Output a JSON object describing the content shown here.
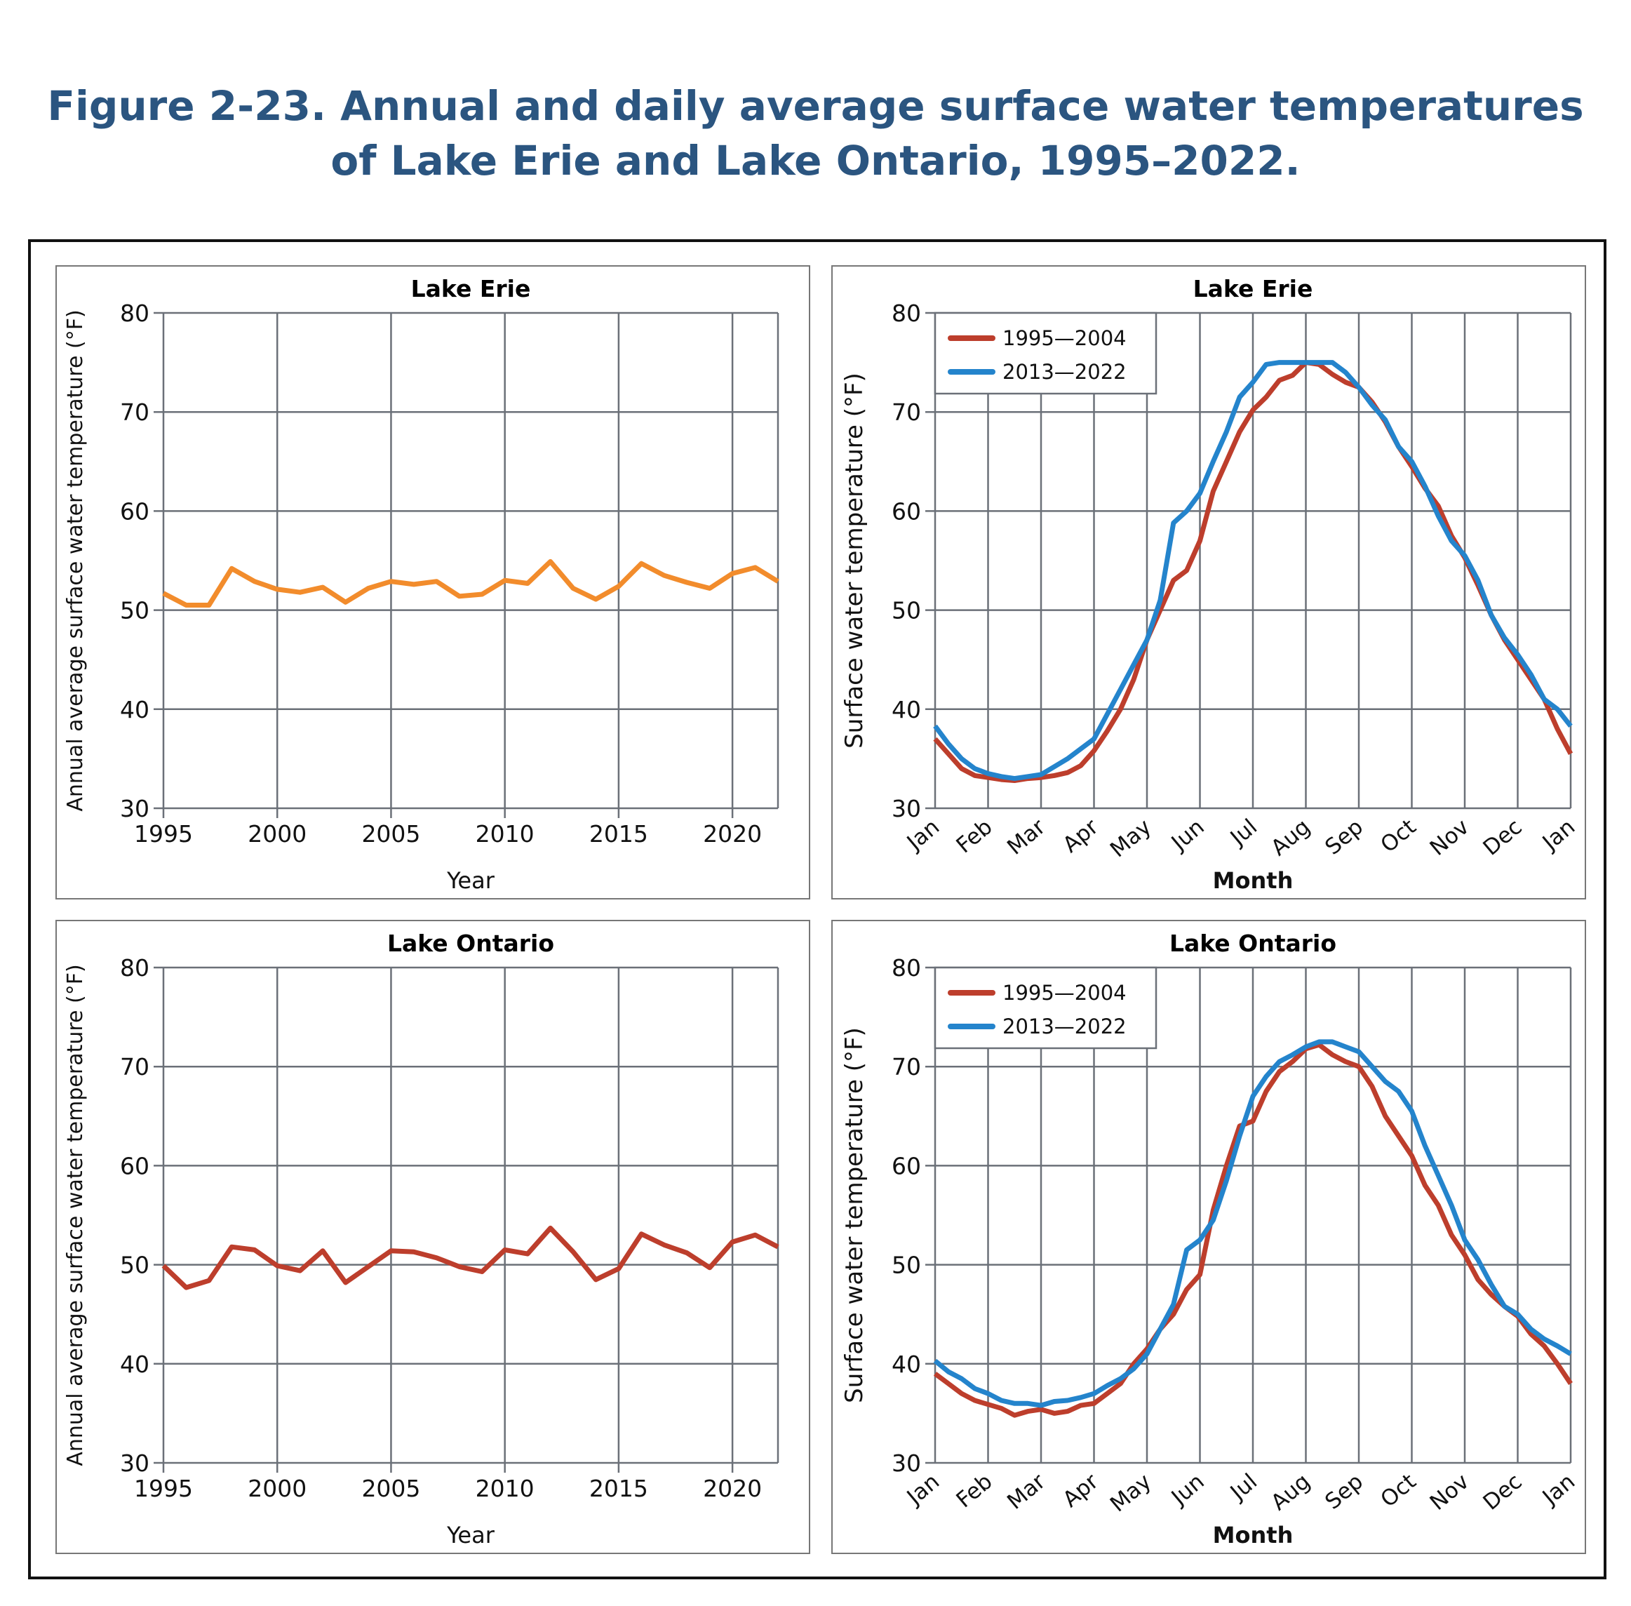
{
  "figure": {
    "title_line1": "Figure 2-23. Annual and daily average surface water temperatures",
    "title_line2": "of Lake Erie and Lake Ontario, 1995–2022."
  },
  "chart_data": [
    {
      "type": "line",
      "title": "Lake Erie",
      "xlabel": "Year",
      "ylabel": "Annual average surface water temperature (°F)",
      "xlim": [
        1995,
        2022
      ],
      "ylim": [
        30,
        80
      ],
      "xticks": [
        1995,
        2000,
        2005,
        2010,
        2015,
        2020
      ],
      "yticks": [
        30,
        40,
        50,
        60,
        70,
        80
      ],
      "grid": true,
      "x": [
        1995,
        1996,
        1997,
        1998,
        1999,
        2000,
        2001,
        2002,
        2003,
        2004,
        2005,
        2006,
        2007,
        2008,
        2009,
        2010,
        2011,
        2012,
        2013,
        2014,
        2015,
        2016,
        2017,
        2018,
        2019,
        2020,
        2021,
        2022
      ],
      "series": [
        {
          "color": "#f28c2c",
          "values": [
            51.7,
            50.5,
            50.5,
            54.2,
            52.9,
            52.1,
            51.8,
            52.3,
            50.8,
            52.2,
            52.9,
            52.6,
            52.9,
            51.4,
            51.6,
            53.0,
            52.7,
            54.9,
            52.2,
            51.1,
            52.4,
            54.7,
            53.5,
            52.8,
            52.2,
            53.7,
            54.3,
            52.9
          ]
        }
      ]
    },
    {
      "type": "line",
      "title": "Lake Erie",
      "xlabel": "Month",
      "ylabel": "Surface water temperature (°F)",
      "xticks": [
        "Jan",
        "Feb",
        "Mar",
        "Apr",
        "May",
        "Jun",
        "Jul",
        "Aug",
        "Sep",
        "Oct",
        "Nov",
        "Dec",
        "Jan"
      ],
      "ylim": [
        30,
        80
      ],
      "yticks": [
        30,
        40,
        50,
        60,
        70,
        80
      ],
      "grid": true,
      "legend": "top-left",
      "series": [
        {
          "name": "1995—2004",
          "color": "#bd3e2c",
          "x": [
            0,
            0.25,
            0.5,
            0.75,
            1,
            1.25,
            1.5,
            1.75,
            2,
            2.25,
            2.5,
            2.75,
            3,
            3.25,
            3.5,
            3.75,
            4,
            4.25,
            4.5,
            4.75,
            5,
            5.25,
            5.5,
            5.75,
            6,
            6.25,
            6.5,
            6.75,
            7,
            7.25,
            7.5,
            7.75,
            8,
            8.25,
            8.5,
            8.75,
            9,
            9.25,
            9.5,
            9.75,
            10,
            10.25,
            10.5,
            10.75,
            11,
            11.25,
            11.5,
            11.75,
            12
          ],
          "values": [
            37,
            35.5,
            34,
            33.3,
            33.1,
            32.9,
            32.8,
            33,
            33.1,
            33.3,
            33.6,
            34.3,
            35.8,
            37.8,
            40,
            43,
            47,
            50,
            53,
            54,
            57,
            62,
            65,
            68,
            70.2,
            71.5,
            73.2,
            73.7,
            75,
            74.8,
            73.8,
            73,
            72.5,
            71,
            69,
            66.5,
            64.5,
            62.3,
            60.5,
            57.5,
            55.3,
            52.5,
            49.5,
            47,
            45,
            43,
            41,
            38,
            35.5
          ]
        },
        {
          "name": "2013—2022",
          "color": "#2484cc",
          "x": [
            0,
            0.25,
            0.5,
            0.75,
            1,
            1.25,
            1.5,
            1.75,
            2,
            2.25,
            2.5,
            2.75,
            3,
            3.25,
            3.5,
            3.75,
            4,
            4.25,
            4.5,
            4.75,
            5,
            5.25,
            5.5,
            5.75,
            6,
            6.25,
            6.5,
            6.75,
            7,
            7.25,
            7.5,
            7.75,
            8,
            8.25,
            8.5,
            8.75,
            9,
            9.25,
            9.5,
            9.75,
            10,
            10.25,
            10.5,
            10.75,
            11,
            11.25,
            11.5,
            11.75,
            12
          ],
          "values": [
            38.3,
            36.5,
            35,
            34,
            33.5,
            33.2,
            33,
            33.2,
            33.4,
            34.2,
            35,
            36,
            37,
            39.5,
            42,
            44.5,
            47,
            51,
            58.8,
            60,
            61.8,
            65,
            68,
            71.5,
            73,
            74.8,
            75,
            75,
            75,
            75,
            75,
            74,
            72.5,
            70.7,
            69.2,
            66.5,
            65,
            62.5,
            59.5,
            57,
            55.5,
            53,
            49.5,
            47.2,
            45.5,
            43.5,
            41,
            40,
            38.3
          ]
        }
      ]
    },
    {
      "type": "line",
      "title": "Lake Ontario",
      "xlabel": "Year",
      "ylabel": "Annual average surface water temperature (°F)",
      "xlim": [
        1995,
        2022
      ],
      "ylim": [
        30,
        80
      ],
      "xticks": [
        1995,
        2000,
        2005,
        2010,
        2015,
        2020
      ],
      "yticks": [
        30,
        40,
        50,
        60,
        70,
        80
      ],
      "grid": true,
      "x": [
        1995,
        1996,
        1997,
        1998,
        1999,
        2000,
        2001,
        2002,
        2003,
        2004,
        2005,
        2006,
        2007,
        2008,
        2009,
        2010,
        2011,
        2012,
        2013,
        2014,
        2015,
        2016,
        2017,
        2018,
        2019,
        2020,
        2021,
        2022
      ],
      "series": [
        {
          "color": "#bd3e2c",
          "values": [
            49.9,
            47.7,
            48.4,
            51.8,
            51.5,
            49.9,
            49.4,
            51.4,
            48.2,
            49.8,
            51.4,
            51.3,
            50.7,
            49.8,
            49.3,
            51.5,
            51.1,
            53.7,
            51.3,
            48.5,
            49.6,
            53.1,
            52.0,
            51.2,
            49.7,
            52.3,
            53.0,
            51.8
          ]
        }
      ]
    },
    {
      "type": "line",
      "title": "Lake Ontario",
      "xlabel": "Month",
      "ylabel": "Surface water temperature (°F)",
      "xticks": [
        "Jan",
        "Feb",
        "Mar",
        "Apr",
        "May",
        "Jun",
        "Jul",
        "Aug",
        "Sep",
        "Oct",
        "Nov",
        "Dec",
        "Jan"
      ],
      "ylim": [
        30,
        80
      ],
      "yticks": [
        30,
        40,
        50,
        60,
        70,
        80
      ],
      "grid": true,
      "legend": "top-left",
      "series": [
        {
          "name": "1995—2004",
          "color": "#bd3e2c",
          "x": [
            0,
            0.25,
            0.5,
            0.75,
            1,
            1.25,
            1.5,
            1.75,
            2,
            2.25,
            2.5,
            2.75,
            3,
            3.25,
            3.5,
            3.75,
            4,
            4.25,
            4.5,
            4.75,
            5,
            5.25,
            5.5,
            5.75,
            6,
            6.25,
            6.5,
            6.75,
            7,
            7.25,
            7.5,
            7.75,
            8,
            8.25,
            8.5,
            8.75,
            9,
            9.25,
            9.5,
            9.75,
            10,
            10.25,
            10.5,
            10.75,
            11,
            11.25,
            11.5,
            11.75,
            12
          ],
          "values": [
            39,
            38,
            37,
            36.3,
            35.9,
            35.5,
            34.8,
            35.2,
            35.4,
            35,
            35.2,
            35.8,
            36,
            37,
            38,
            40,
            41.5,
            43.5,
            45,
            47.5,
            49,
            55.5,
            60,
            64,
            64.5,
            67.5,
            69.5,
            70.5,
            71.8,
            72.2,
            71.2,
            70.5,
            70,
            68,
            65,
            63,
            61,
            58,
            56,
            53,
            51,
            48.5,
            47,
            45.8,
            44.8,
            43,
            41.8,
            40,
            38
          ]
        },
        {
          "name": "2013—2022",
          "color": "#2484cc",
          "x": [
            0,
            0.25,
            0.5,
            0.75,
            1,
            1.25,
            1.5,
            1.75,
            2,
            2.25,
            2.5,
            2.75,
            3,
            3.25,
            3.5,
            3.75,
            4,
            4.25,
            4.5,
            4.75,
            5,
            5.25,
            5.5,
            5.75,
            6,
            6.25,
            6.5,
            6.75,
            7,
            7.25,
            7.5,
            7.75,
            8,
            8.25,
            8.5,
            8.75,
            9,
            9.25,
            9.5,
            9.75,
            10,
            10.25,
            10.5,
            10.75,
            11,
            11.25,
            11.5,
            11.75,
            12
          ],
          "values": [
            40.3,
            39.2,
            38.5,
            37.5,
            37,
            36.3,
            36,
            36,
            35.8,
            36.2,
            36.3,
            36.6,
            37,
            37.8,
            38.5,
            39.5,
            41,
            43.5,
            46,
            51.5,
            52.5,
            54.5,
            58.5,
            63,
            67,
            69,
            70.5,
            71.2,
            72,
            72.5,
            72.5,
            72,
            71.5,
            70,
            68.5,
            67.5,
            65.5,
            62,
            59,
            56,
            52.5,
            50.5,
            48,
            45.8,
            45,
            43.5,
            42.5,
            41.8,
            41
          ]
        }
      ]
    }
  ]
}
